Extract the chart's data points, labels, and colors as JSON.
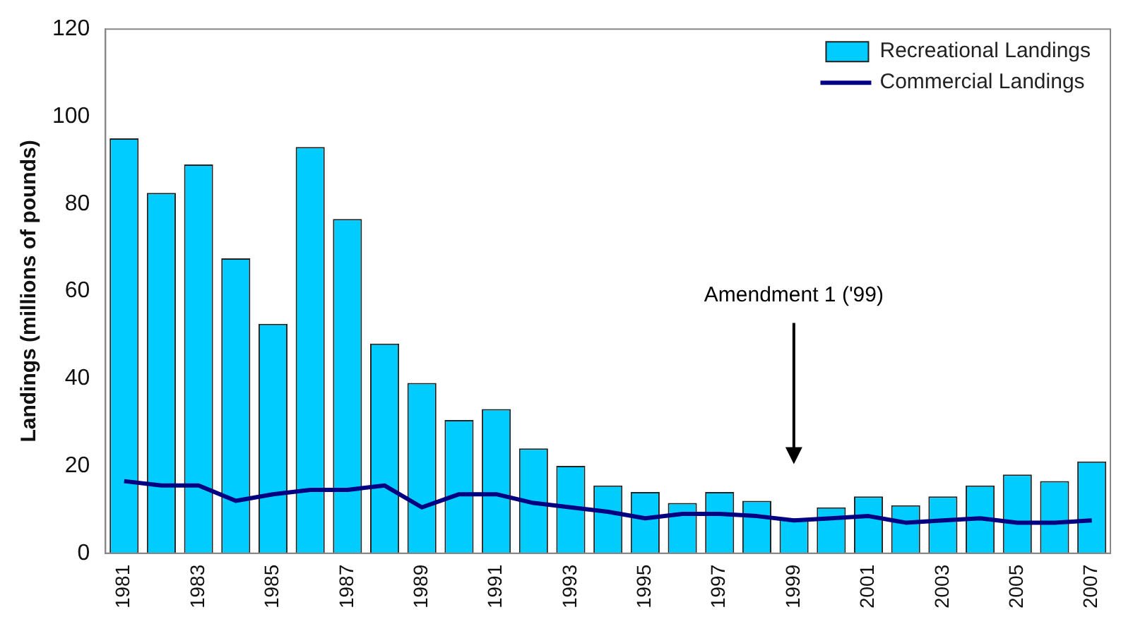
{
  "chart_data": {
    "type": "bar",
    "ylabel": "Landings (millions of pounds)",
    "categories": [
      "1981",
      null,
      "1983",
      null,
      "1985",
      null,
      "1987",
      null,
      "1989",
      null,
      "1991",
      null,
      "1993",
      null,
      "1995",
      null,
      "1997",
      null,
      "1999",
      null,
      "2001",
      null,
      "2003",
      null,
      "2005",
      null,
      "2007"
    ],
    "series": [
      {
        "name": "Recreational Landings",
        "color": "#00ccff",
        "values": [
          95,
          82.5,
          89,
          67.5,
          52.5,
          93,
          76.5,
          48,
          39,
          30.5,
          33,
          24,
          20,
          15.5,
          14,
          11.5,
          14,
          12,
          8,
          10.5,
          13,
          11,
          13,
          15.5,
          18,
          16.5,
          21
        ]
      },
      {
        "name": "Commercial Landings",
        "type": "line",
        "color": "#000080",
        "values": [
          16.5,
          15.5,
          15.5,
          12,
          13.5,
          14.5,
          14.5,
          15.5,
          10.5,
          13.5,
          13.5,
          11.5,
          10.5,
          9.5,
          8,
          9,
          9,
          8.5,
          7.5,
          8,
          8.5,
          7,
          7.5,
          8,
          7,
          7,
          7.5
        ]
      }
    ],
    "ylim": [
      0,
      120
    ],
    "yticks": [
      0,
      20,
      40,
      60,
      80,
      100,
      120
    ],
    "grid": false,
    "legend": "top right",
    "marker": "none",
    "annotations": [
      "Amendment 1 ('99)"
    ]
  }
}
